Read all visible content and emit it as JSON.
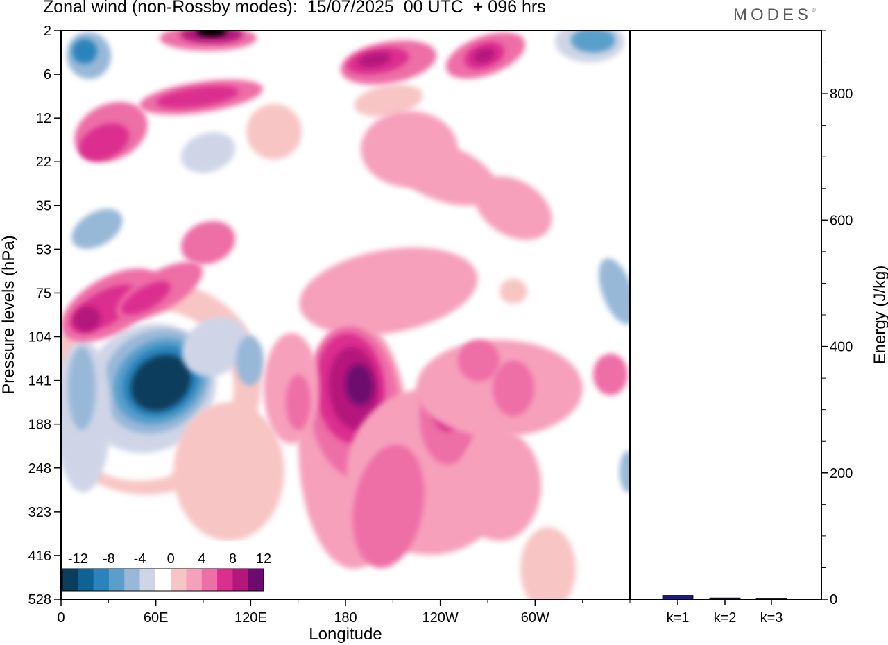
{
  "header": {
    "title": "Zonal wind (non-Rossby modes):  15/07/2025  00 UTC  + 096 hrs",
    "logo": "MODES",
    "logo_mark": "®"
  },
  "chart_data": [
    {
      "type": "heatmap",
      "title": "Zonal wind (non-Rossby modes):  15/07/2025  00 UTC  + 096 hrs",
      "xlabel": "Longitude",
      "ylabel": "Pressure levels (hPa)",
      "x_ticks": [
        "0",
        "60E",
        "120E",
        "180",
        "120W",
        "60W"
      ],
      "x_tick_values": [
        0,
        60,
        120,
        180,
        240,
        300
      ],
      "xlim": [
        0,
        360
      ],
      "y_ticks": [
        "2",
        "6",
        "12",
        "22",
        "35",
        "53",
        "75",
        "104",
        "141",
        "188",
        "248",
        "323",
        "416",
        "528"
      ],
      "y_scale": "categorical pressure levels, top to bottom",
      "colorbar": {
        "labels": [
          "-12",
          "-8",
          "-4",
          "0",
          "4",
          "8",
          "12"
        ],
        "levels": [
          -14,
          -12,
          -10,
          -8,
          -6,
          -4,
          -2,
          2,
          4,
          6,
          8,
          10,
          12,
          14
        ],
        "colors": [
          "#0b3d5c",
          "#0f6394",
          "#2b83bb",
          "#5a9fcb",
          "#98b8d8",
          "#cfd5e7",
          "#ffffff",
          "#f8c5c5",
          "#f6a0bc",
          "#ee6ea6",
          "#db2f8f",
          "#b4167b",
          "#6e0b6e"
        ],
        "placement": "bottom-left"
      },
      "features": [
        {
          "name": "strong easterly core",
          "lon": 50,
          "level": "141",
          "value": -14
        },
        {
          "name": "westerly maximum",
          "lon": 180,
          "level": "141",
          "value": 10
        },
        {
          "name": "westerly maximum",
          "lon": 233,
          "level": "141",
          "value": 8
        },
        {
          "name": "easterly upper-left",
          "lon": 8,
          "level": "2",
          "value": -12
        },
        {
          "name": "easterly upper-right",
          "lon": 340,
          "level": "2",
          "value": -10
        },
        {
          "name": "westerly upper band",
          "lon": 195,
          "level": "6",
          "value": 8
        },
        {
          "name": "westerly upper band",
          "lon": 258,
          "level": "6",
          "value": 8
        },
        {
          "name": "westerly top",
          "lon": 100,
          "level": "2",
          "value": 12
        },
        {
          "name": "westerly band",
          "lon": 15,
          "level": "104",
          "value": 8
        },
        {
          "name": "easterly right edge",
          "lon": 355,
          "level": "248",
          "value": -6
        }
      ]
    },
    {
      "type": "bar",
      "categories": [
        "k=1",
        "k=2",
        "k=3"
      ],
      "values": [
        6,
        2,
        1
      ],
      "ylabel": "Energy (J/kg)",
      "ylim": [
        0,
        900
      ],
      "y_ticks": [
        "0",
        "200",
        "400",
        "600",
        "800"
      ],
      "y_tick_values": [
        0,
        200,
        400,
        600,
        800
      ],
      "bar_color": "#1a1a8c"
    }
  ]
}
